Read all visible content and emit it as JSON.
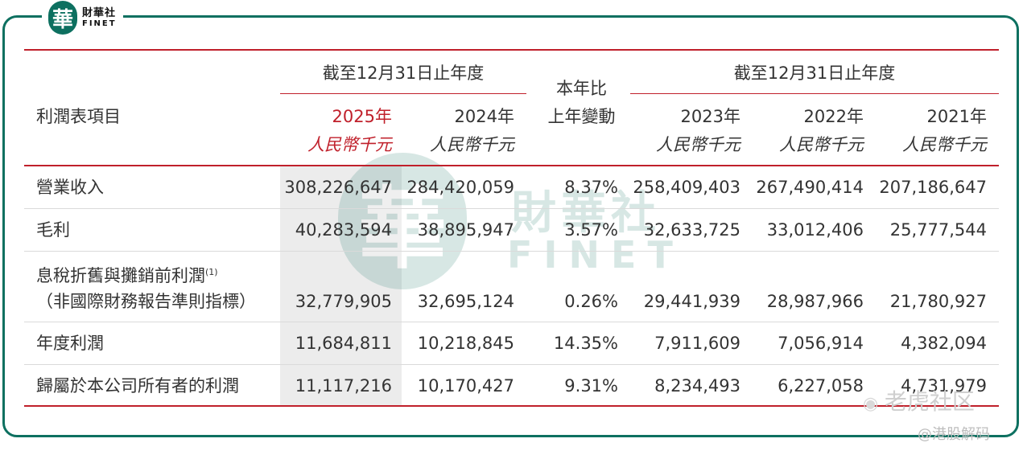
{
  "logo": {
    "mark": "華",
    "cn": "財華社",
    "en": "FINET"
  },
  "watermark": {
    "mark": "華",
    "cn": "財華社",
    "en": "FINET"
  },
  "header": {
    "group1_title": "截至12月31日止年度",
    "group2_title": "截至12月31日止年度",
    "item_label": "利潤表項目",
    "change_line1": "本年比",
    "change_line2": "上年變動",
    "unit": "人民幣千元",
    "years": [
      "2025年",
      "2024年",
      "2023年",
      "2022年",
      "2021年"
    ]
  },
  "rows": [
    {
      "label": "營業收入",
      "v2025": "308,226,647",
      "v2024": "284,420,059",
      "change": "8.37%",
      "v2023": "258,409,403",
      "v2022": "267,490,414",
      "v2021": "207,186,647"
    },
    {
      "label": "毛利",
      "v2025": "40,283,594",
      "v2024": "38,895,947",
      "change": "3.57%",
      "v2023": "32,633,725",
      "v2022": "33,012,406",
      "v2021": "25,777,544"
    },
    {
      "label": "息稅折舊與攤銷前利潤",
      "label_sup": "(1)",
      "label_line2": "（非國際財務報告準則指標）",
      "v2025": "32,779,905",
      "v2024": "32,695,124",
      "change": "0.26%",
      "v2023": "29,441,939",
      "v2022": "28,987,966",
      "v2021": "21,780,927"
    },
    {
      "label": "年度利潤",
      "v2025": "11,684,811",
      "v2024": "10,218,845",
      "change": "14.35%",
      "v2023": "7,911,609",
      "v2022": "7,056,914",
      "v2021": "4,382,094"
    },
    {
      "label": "歸屬於本公司所有者的利潤",
      "v2025": "11,117,216",
      "v2024": "10,170,427",
      "change": "9.31%",
      "v2023": "8,234,493",
      "v2022": "6,227,058",
      "v2021": "4,731,979"
    }
  ],
  "corner_watermark": {
    "line1": "老虎社区",
    "line2": "@港股解码"
  },
  "colors": {
    "accent_red": "#c0202b",
    "brand_green": "#0d7060",
    "shade": "#ececec"
  }
}
